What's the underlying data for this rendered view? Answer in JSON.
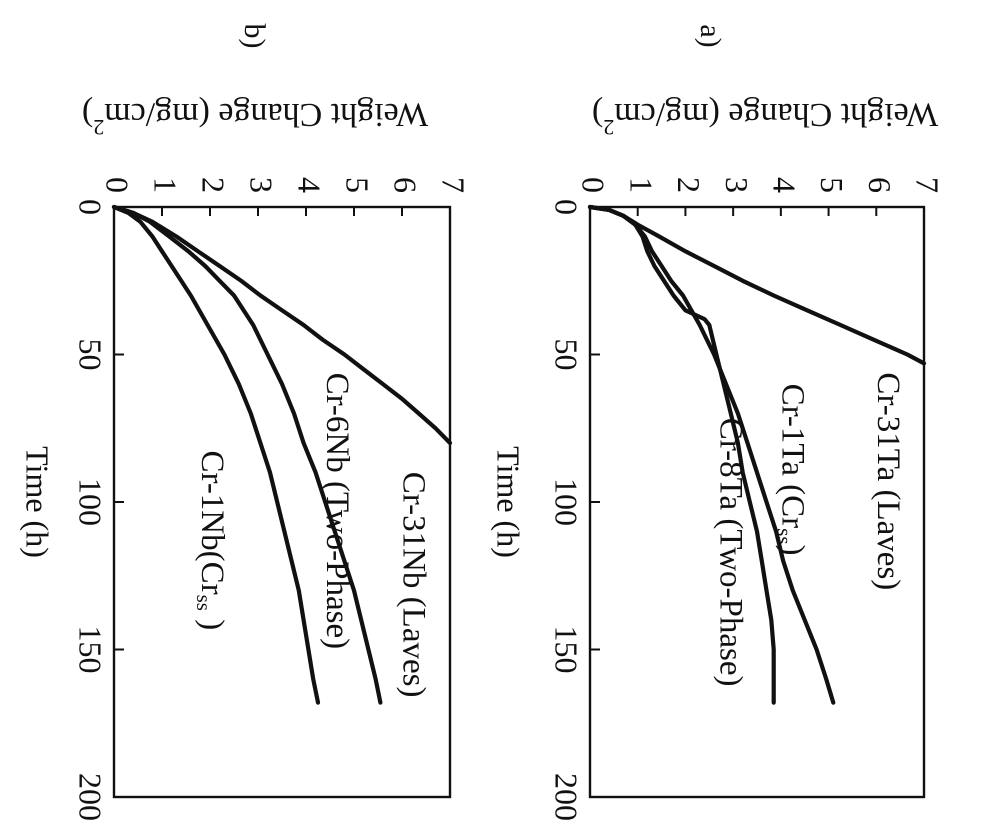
{
  "chart_data": [
    {
      "panel_label": "a)",
      "type": "line",
      "xlabel": "Time (h)",
      "ylabel": "Weight Change (mg/cm",
      "ylabel_sup": "2",
      "ylabel_close": ")",
      "xlim": [
        0,
        200
      ],
      "ylim": [
        0,
        7
      ],
      "xticks": [
        0,
        50,
        100,
        150,
        200
      ],
      "yticks": [
        0,
        1,
        2,
        3,
        4,
        5,
        6,
        7
      ],
      "grid": false,
      "series": [
        {
          "name": "Cr-31Ta (Laves)",
          "label_parts": [
            "Cr-31Ta (Laves)"
          ],
          "label_at": [
            93,
            6.2
          ],
          "x": [
            0,
            1,
            3,
            6,
            10,
            15,
            20,
            25,
            30,
            35,
            40,
            45,
            50,
            53
          ],
          "y": [
            0,
            0.4,
            0.7,
            1.0,
            1.45,
            2.0,
            2.6,
            3.2,
            3.85,
            4.55,
            5.25,
            5.95,
            6.65,
            7.0
          ]
        },
        {
          "name": "Cr-1Ta (Crss)",
          "label_parts": [
            "Cr-1Ta (Cr",
            "ss",
            ")"
          ],
          "label_at": [
            89,
            4.2
          ],
          "x": [
            0,
            1,
            3,
            6,
            10,
            15,
            20,
            25,
            30,
            40,
            50,
            60,
            70,
            80,
            90,
            100,
            110,
            120,
            130,
            140,
            150,
            160,
            168
          ],
          "y": [
            0,
            0.4,
            0.7,
            0.95,
            1.15,
            1.3,
            1.5,
            1.7,
            1.95,
            2.3,
            2.6,
            2.85,
            3.1,
            3.3,
            3.5,
            3.7,
            3.9,
            4.05,
            4.25,
            4.5,
            4.75,
            4.95,
            5.1
          ]
        },
        {
          "name": "Cr-8Ta (Two-Phase)",
          "label_parts": [
            "Cr-8Ta (Two-Phase)"
          ],
          "label_at": [
            117,
            2.9
          ],
          "x": [
            0,
            1,
            3,
            6,
            10,
            15,
            20,
            25,
            30,
            35,
            38,
            40,
            50,
            60,
            70,
            80,
            90,
            100,
            110,
            120,
            130,
            140,
            150,
            160,
            168
          ],
          "y": [
            0,
            0.4,
            0.7,
            0.95,
            1.1,
            1.2,
            1.35,
            1.55,
            1.75,
            2.0,
            2.4,
            2.5,
            2.65,
            2.8,
            2.95,
            3.1,
            3.2,
            3.35,
            3.5,
            3.6,
            3.7,
            3.8,
            3.85,
            3.85,
            3.85
          ]
        }
      ]
    },
    {
      "panel_label": "b)",
      "type": "line",
      "xlabel": "Time (h)",
      "ylabel": "Weight Change (mg/cm",
      "ylabel_sup": "2",
      "ylabel_close": ")",
      "xlim": [
        0,
        200
      ],
      "ylim": [
        0,
        7
      ],
      "xticks": [
        0,
        50,
        100,
        150,
        200
      ],
      "yticks": [
        0,
        1,
        2,
        3,
        4,
        5,
        6,
        7
      ],
      "grid": false,
      "series": [
        {
          "name": "Cr-31Nb (Laves)",
          "label_parts": [
            "Cr-31Nb (Laves)"
          ],
          "label_at": [
            128,
            6.2
          ],
          "x": [
            0,
            2,
            5,
            10,
            15,
            20,
            25,
            30,
            35,
            40,
            45,
            50,
            55,
            60,
            65,
            70,
            75,
            80
          ],
          "y": [
            0,
            0.4,
            0.8,
            1.3,
            1.75,
            2.2,
            2.65,
            3.05,
            3.5,
            3.95,
            4.35,
            4.8,
            5.2,
            5.6,
            6.0,
            6.35,
            6.7,
            7.0
          ]
        },
        {
          "name": "Cr-6Nb (Two-Phase)",
          "label_parts": [
            "Cr-6Nb (Two-Phase)"
          ],
          "label_at": [
            103,
            4.6
          ],
          "x": [
            0,
            2,
            5,
            10,
            15,
            20,
            25,
            30,
            40,
            50,
            60,
            70,
            80,
            90,
            100,
            110,
            120,
            130,
            140,
            150,
            160,
            168
          ],
          "y": [
            0,
            0.4,
            0.75,
            1.15,
            1.55,
            1.9,
            2.2,
            2.5,
            2.9,
            3.2,
            3.5,
            3.75,
            3.95,
            4.2,
            4.4,
            4.6,
            4.8,
            5.0,
            5.15,
            5.3,
            5.45,
            5.55
          ]
        },
        {
          "name": "Cr-1Nb (Crss)",
          "label_parts": [
            "Cr-1Nb(Cr",
            "ss",
            " )"
          ],
          "label_at": [
            113,
            2.0
          ],
          "x": [
            0,
            2,
            5,
            10,
            15,
            20,
            30,
            40,
            50,
            60,
            70,
            80,
            90,
            100,
            110,
            120,
            130,
            140,
            150,
            160,
            168
          ],
          "y": [
            0,
            0.3,
            0.55,
            0.8,
            1.0,
            1.2,
            1.6,
            1.95,
            2.3,
            2.6,
            2.85,
            3.05,
            3.25,
            3.4,
            3.55,
            3.7,
            3.85,
            3.95,
            4.05,
            4.15,
            4.25
          ]
        }
      ]
    }
  ]
}
